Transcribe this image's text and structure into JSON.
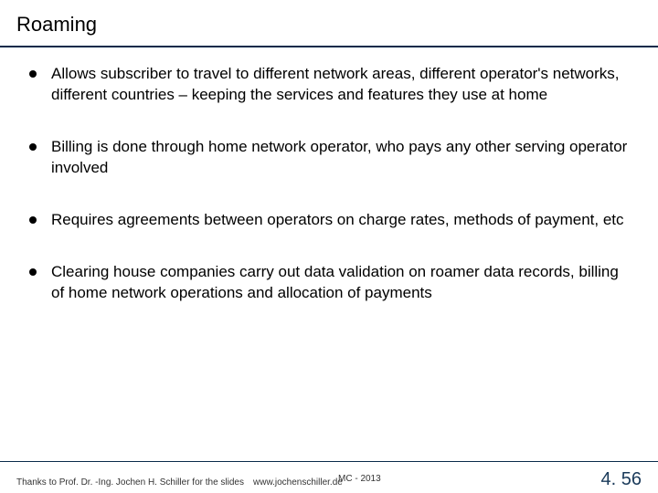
{
  "title": "Roaming",
  "bullets": [
    "Allows subscriber to travel to different network areas, different operator's networks, different countries – keeping the services and features they use at home",
    "Billing is done through home network operator, who pays any other serving operator involved",
    "Requires agreements between operators on charge rates, methods of payment, etc",
    "Clearing house companies carry out data validation on roamer data records, billing of home network operations and allocation of payments"
  ],
  "footer": {
    "credit": "Thanks to Prof. Dr. -Ing. Jochen H. Schiller for the slides",
    "url": "www.jochenschiller.de",
    "course": "MC - 2013",
    "page": "4. 56"
  },
  "colors": {
    "accent": "#0a2a4a",
    "text": "#000000",
    "background": "#ffffff"
  }
}
